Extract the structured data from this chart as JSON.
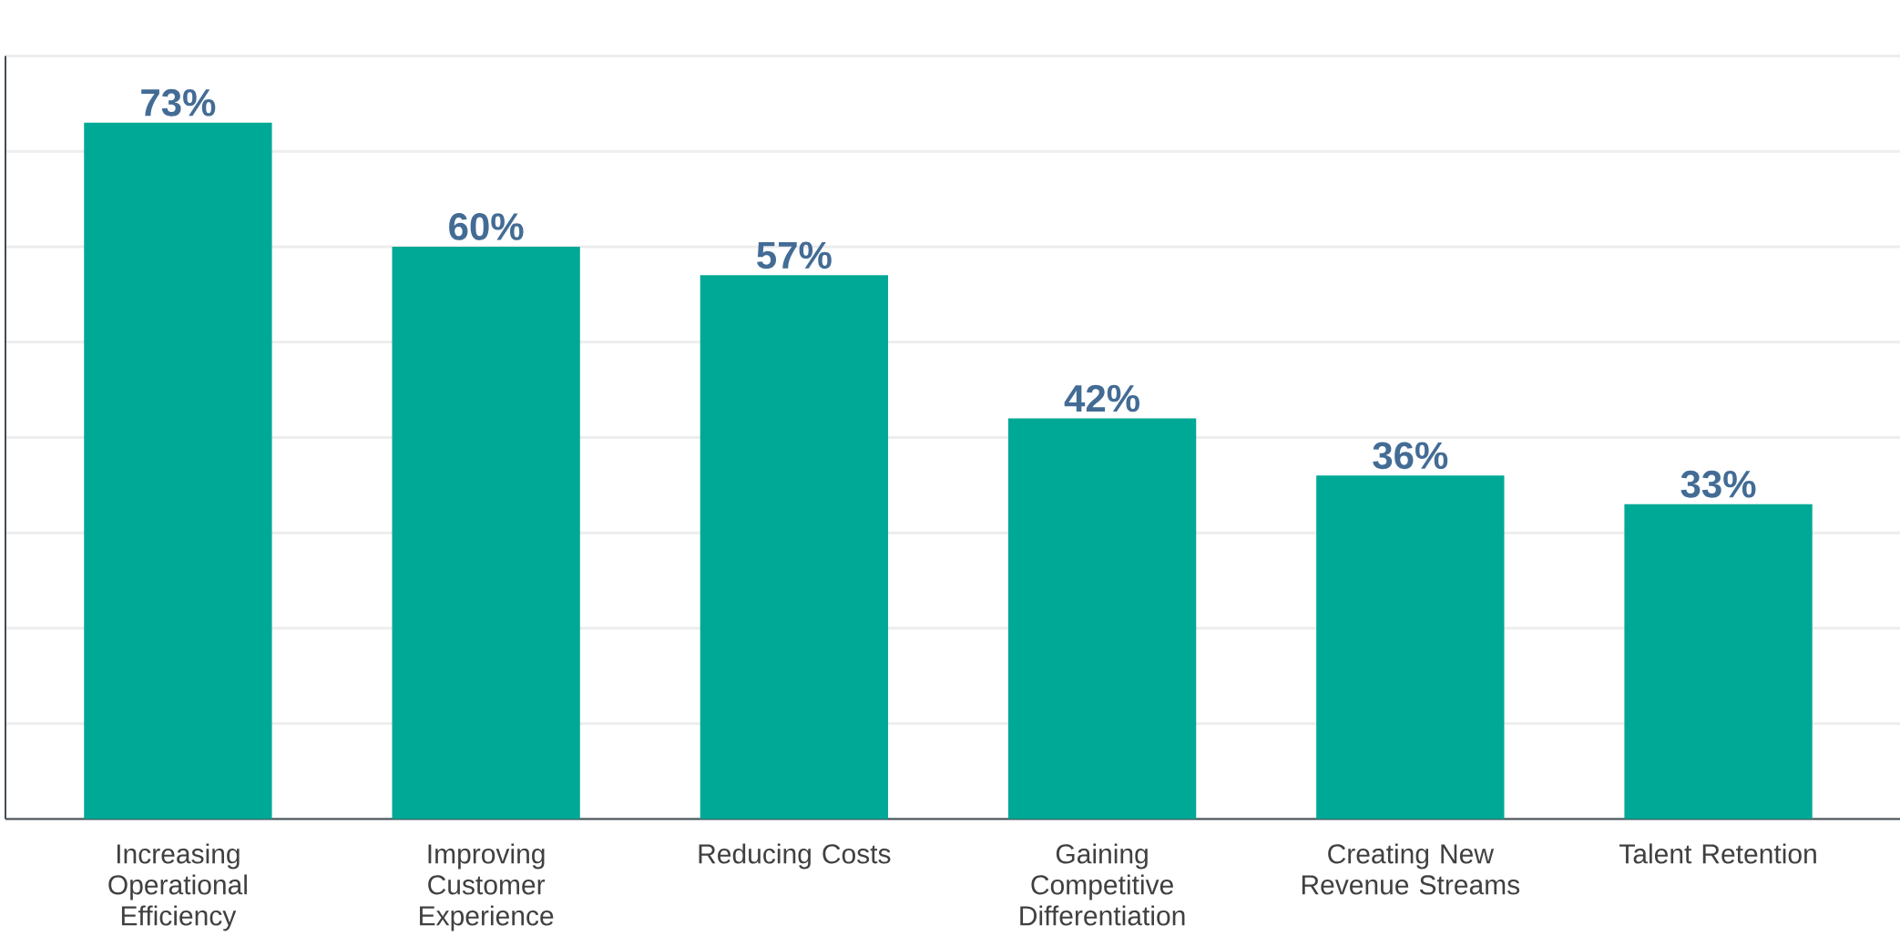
{
  "chart_data": {
    "type": "bar",
    "categories": [
      "Increasing Operational Efficiency",
      "Improving Customer Experience",
      "Reducing Costs",
      "Gaining Competitive Differentiation",
      "Creating New Revenue Streams",
      "Talent Retention"
    ],
    "values": [
      73,
      60,
      57,
      42,
      36,
      33
    ],
    "value_labels": [
      "73%",
      "60%",
      "57%",
      "42%",
      "36%",
      "33%"
    ],
    "color": "#00a995",
    "ylim": [
      0,
      80
    ],
    "yticks": [
      {
        "value": 0,
        "label": null
      },
      {
        "value": 10,
        "label": null
      },
      {
        "value": 20,
        "label": null
      },
      {
        "value": 30,
        "label": null
      },
      {
        "value": 40,
        "label": null
      },
      {
        "value": 50,
        "label": null
      },
      {
        "value": 60,
        "label": null
      },
      {
        "value": 70,
        "label": null
      },
      {
        "value": 80,
        "label": null
      }
    ],
    "grid": "y",
    "tick_labels": "x"
  }
}
